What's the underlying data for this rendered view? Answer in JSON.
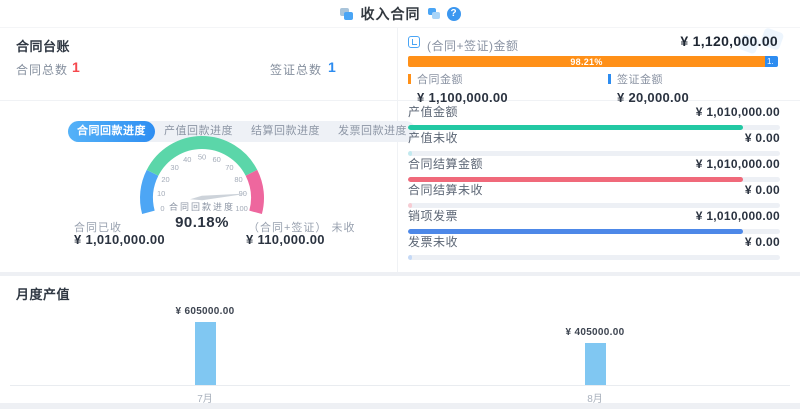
{
  "header": {
    "title": "收入合同",
    "help": "?"
  },
  "left": {
    "ledger_title": "合同台账",
    "stats": [
      {
        "label": "合同总数",
        "value": "1",
        "color": "#f5484d"
      },
      {
        "label": "签证总数",
        "value": "1",
        "color": "#2d8cf0"
      }
    ],
    "tabs": [
      {
        "label": "合同回款进度",
        "active": true
      },
      {
        "label": "产值回款进度",
        "active": false
      },
      {
        "label": "结算回款进度",
        "active": false
      },
      {
        "label": "发票回款进度",
        "active": false
      }
    ],
    "received": {
      "label": "合同已收",
      "value": "¥ 1,010,000.00"
    },
    "unreceived": {
      "label": "（合同+签证） 未收",
      "value": "¥ 110,000.00"
    }
  },
  "right": {
    "total": {
      "label": "(合同+签证)金额",
      "value": "¥ 1,120,000.00"
    },
    "split_bar": {
      "primary_pct": 98.21,
      "primary_text": "98.21%",
      "secondary_text": "1.",
      "primary_color": "#ff9018",
      "secondary_color": "#2d8cf0"
    },
    "legend": [
      {
        "label": "合同金额",
        "value": "¥ 1,100,000.00",
        "color": "#ff9018"
      },
      {
        "label": "签证金额",
        "value": "¥ 20,000.00",
        "color": "#2d8cf0"
      }
    ],
    "metrics": [
      {
        "label": "产值金额",
        "value": "¥ 1,010,000.00",
        "pct": 90.18,
        "color": "#22c8a3"
      },
      {
        "label": "产值未收",
        "value": "¥ 0.00",
        "pct": 1.2,
        "color": "#c2e9ef"
      },
      {
        "label": "合同结算金额",
        "value": "¥ 1,010,000.00",
        "pct": 90.18,
        "color": "#f0697a"
      },
      {
        "label": "合同结算未收",
        "value": "¥ 0.00",
        "pct": 1.2,
        "color": "#f7ccd3"
      },
      {
        "label": "销项发票",
        "value": "¥ 1,010,000.00",
        "pct": 90.18,
        "color": "#4d88e8"
      },
      {
        "label": "发票未收",
        "value": "¥ 0.00",
        "pct": 1.2,
        "color": "#c5d9f6"
      }
    ]
  },
  "chart_data": [
    {
      "type": "gauge",
      "name": "合同回款进度",
      "value": 90.18,
      "value_text": "90.18%",
      "min": 0,
      "max": 100,
      "tick_labels": [
        0,
        10,
        20,
        30,
        40,
        50,
        60,
        70,
        80,
        90,
        100
      ],
      "segments": [
        {
          "to": 20,
          "color": "#4da6f5"
        },
        {
          "to": 80,
          "color": "#5bd6a9"
        },
        {
          "to": 100,
          "color": "#ee679e"
        }
      ],
      "needle_color": "#cdd3da"
    },
    {
      "type": "bar",
      "title": "月度产值",
      "categories": [
        "7月",
        "8月"
      ],
      "values": [
        605000,
        405000
      ],
      "value_labels": [
        "¥ 605000.00",
        "¥ 405000.00"
      ],
      "bar_color": "#80c7f2",
      "ylim": [
        0,
        605000
      ]
    }
  ]
}
